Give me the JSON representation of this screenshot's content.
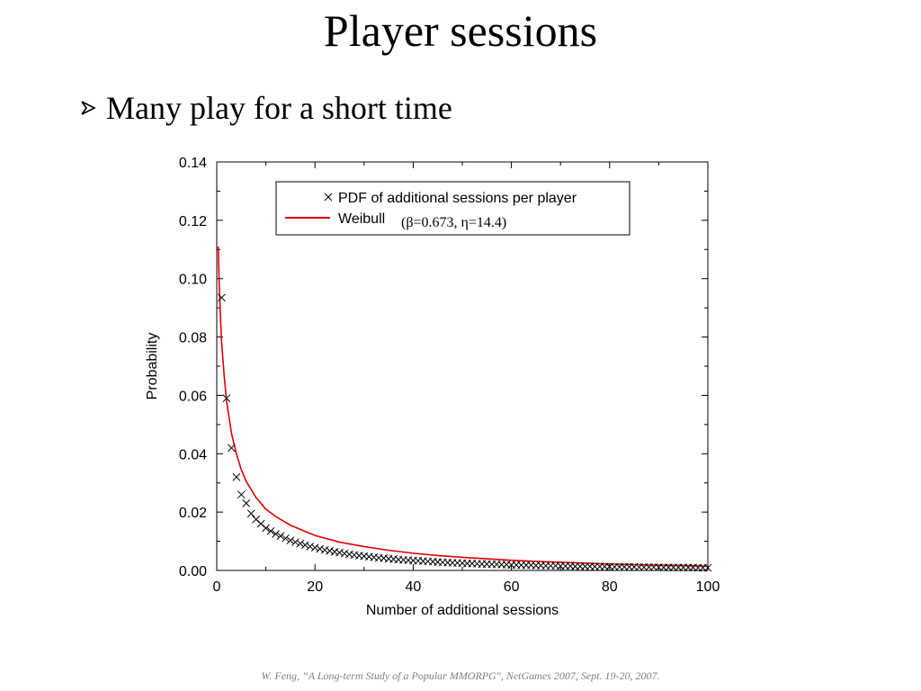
{
  "slide": {
    "title": "Player sessions",
    "bullet": "Many play for a short time",
    "bullet_icon": "arrow-bullet-icon",
    "citation": "W. Feng, “A Long-term Study of a Popular MMORPG\", NetGames 2007, Sept. 19-20, 2007."
  },
  "chart_data": {
    "type": "scatter",
    "title": "",
    "xlabel": "Number of additional sessions",
    "ylabel": "Probability",
    "xlim": [
      0,
      100
    ],
    "ylim": [
      0,
      0.14
    ],
    "xticks": [
      "0",
      "20",
      "40",
      "60",
      "80",
      "100"
    ],
    "yticks": [
      "0.00",
      "0.02",
      "0.04",
      "0.06",
      "0.08",
      "0.10",
      "0.12",
      "0.14"
    ],
    "grid": false,
    "legend_position": "top-right",
    "colors": {
      "data": "#000000",
      "fit": "#e00000"
    },
    "series": [
      {
        "name": "PDF of additional sessions per player",
        "type": "scatter",
        "marker": "×",
        "x": [
          1,
          2,
          3,
          4,
          5,
          6,
          7,
          8,
          9,
          10,
          11,
          12,
          13,
          14,
          15,
          16,
          17,
          18,
          19,
          20,
          21,
          22,
          23,
          24,
          25,
          26,
          27,
          28,
          29,
          30,
          31,
          32,
          33,
          34,
          35,
          36,
          37,
          38,
          39,
          40,
          41,
          42,
          43,
          44,
          45,
          46,
          47,
          48,
          49,
          50,
          51,
          52,
          53,
          54,
          55,
          56,
          57,
          58,
          59,
          60,
          61,
          62,
          63,
          64,
          65,
          66,
          67,
          68,
          69,
          70,
          71,
          72,
          73,
          74,
          75,
          76,
          77,
          78,
          79,
          80,
          81,
          82,
          83,
          84,
          85,
          86,
          87,
          88,
          89,
          90,
          91,
          92,
          93,
          94,
          95,
          96,
          97,
          98,
          99,
          100
        ],
        "y": [
          0.0935,
          0.059,
          0.042,
          0.032,
          0.026,
          0.023,
          0.0195,
          0.0175,
          0.016,
          0.0145,
          0.0135,
          0.0125,
          0.0118,
          0.011,
          0.0103,
          0.0097,
          0.0092,
          0.0087,
          0.0082,
          0.0078,
          0.0074,
          0.007,
          0.0067,
          0.0064,
          0.0061,
          0.0058,
          0.0055,
          0.0053,
          0.0051,
          0.0049,
          0.0047,
          0.0045,
          0.0043,
          0.0042,
          0.004,
          0.0039,
          0.0037,
          0.0036,
          0.0035,
          0.0034,
          0.0033,
          0.0032,
          0.0031,
          0.003,
          0.0029,
          0.0028,
          0.0027,
          0.0026,
          0.0026,
          0.0025,
          0.0024,
          0.0024,
          0.0023,
          0.0022,
          0.0022,
          0.0021,
          0.0021,
          0.002,
          0.002,
          0.0019,
          0.0019,
          0.0018,
          0.0018,
          0.0018,
          0.0017,
          0.0017,
          0.0016,
          0.0016,
          0.0016,
          0.0015,
          0.0015,
          0.0015,
          0.0014,
          0.0014,
          0.0014,
          0.0014,
          0.0013,
          0.0013,
          0.0013,
          0.0013,
          0.0012,
          0.0012,
          0.0012,
          0.0012,
          0.0012,
          0.0011,
          0.0011,
          0.0011,
          0.0011,
          0.0011,
          0.001,
          0.001,
          0.001,
          0.001,
          0.001,
          0.001,
          0.001,
          0.0009,
          0.0009,
          0.0009
        ]
      },
      {
        "name": "Weibull",
        "name_params": "(β=0.673, η=14.4)",
        "type": "line",
        "beta": 0.673,
        "eta": 14.4,
        "x": [
          0.3,
          0.5,
          0.8,
          1,
          1.5,
          2,
          3,
          4,
          5,
          6,
          8,
          10,
          12,
          15,
          20,
          25,
          30,
          35,
          40,
          45,
          50,
          55,
          60,
          65,
          70,
          75,
          80,
          85,
          90,
          95,
          100
        ],
        "y": [
          0.111,
          0.098,
          0.085,
          0.078,
          0.067,
          0.058,
          0.047,
          0.04,
          0.0345,
          0.0305,
          0.025,
          0.021,
          0.0185,
          0.0155,
          0.012,
          0.0097,
          0.0082,
          0.0069,
          0.0059,
          0.0051,
          0.0045,
          0.004,
          0.0035,
          0.0031,
          0.0028,
          0.0025,
          0.0022,
          0.002,
          0.0018,
          0.0017,
          0.0015
        ]
      }
    ]
  }
}
